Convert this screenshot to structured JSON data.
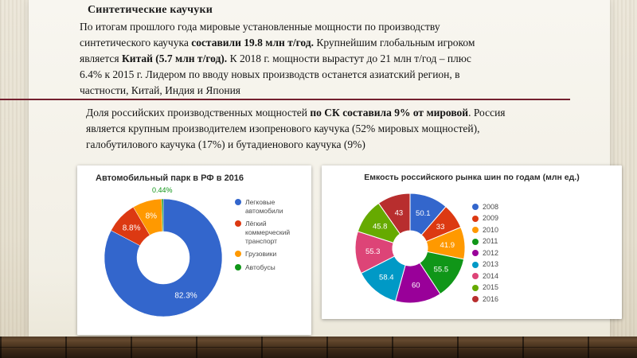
{
  "slide": {
    "title": "Синтетические каучуки",
    "divider_color": "#74202f",
    "paragraph1": {
      "runs": [
        {
          "text": "По итогам прошлого года мировые установленные мощности по производству синтетического каучука ",
          "bold": false
        },
        {
          "text": "составили 19.8 млн т/год.",
          "bold": true
        },
        {
          "text": " Крупнейшим глобальным игроком является ",
          "bold": false
        },
        {
          "text": "Китай (5.7 млн т/год).",
          "bold": true
        },
        {
          "text": " К 2018 г. мощности вырастут до 21 млн т/год – плюс 6.4% к 2015 г. Лидером по вводу новых производств останется азиатский регион, в частности, Китай, Индия и Япония",
          "bold": false
        }
      ]
    },
    "paragraph2": {
      "runs": [
        {
          "text": "Доля российских производственных мощностей ",
          "bold": false
        },
        {
          "text": "по СК составила 9% от мировой",
          "bold": true
        },
        {
          "text": ". Россия является крупным производителем изопренового каучука (52% мировых мощностей), галобутилового каучука (17%) и бутадиенового каучука (9%)",
          "bold": false
        }
      ]
    }
  },
  "chart_data": [
    {
      "type": "pie",
      "donut": true,
      "title": "Автомобильный парк в РФ в 2016",
      "labels": [
        "Легковые автомобили",
        "Лёгкий коммерческий транспорт",
        "Грузовики",
        "Автобусы"
      ],
      "values": [
        82.3,
        8.8,
        8,
        0.44
      ],
      "value_labels": [
        "82.3%",
        "8.8%",
        "8%",
        "0.44%"
      ],
      "colors": [
        "#3366cc",
        "#dc3912",
        "#ff9900",
        "#109618"
      ],
      "legend_position": "right"
    },
    {
      "type": "pie",
      "donut": true,
      "title": "Емкость российского рынка шин по годам (млн ед.)",
      "labels": [
        "2008",
        "2009",
        "2010",
        "2011",
        "2012",
        "2013",
        "2014",
        "2015",
        "2016"
      ],
      "values": [
        50.1,
        33,
        41.9,
        55.5,
        60,
        58.4,
        55.3,
        45.8,
        43
      ],
      "value_labels": [
        "50.1",
        "33",
        "41.9",
        "55.5",
        "60",
        "58.4",
        "55.3",
        "45.8",
        "43"
      ],
      "colors": [
        "#3366cc",
        "#dc3912",
        "#ff9900",
        "#109618",
        "#990099",
        "#0099c6",
        "#dd4477",
        "#66aa00",
        "#b82e2e"
      ],
      "legend_position": "right"
    }
  ]
}
